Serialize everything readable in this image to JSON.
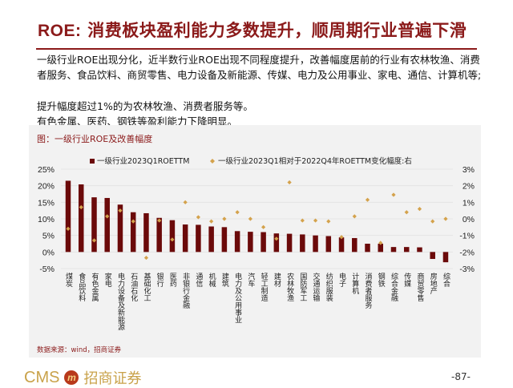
{
  "header": {
    "title_prefix": "ROE:",
    "title_rest": " 消费板块盈利能力多数提升，顺周期行业普遍下滑"
  },
  "body": {
    "para1": "一级行业ROE出现分化，近半数行业ROE出现不同程度提升，改善幅度居前的行业有农林牧渔、消费者服务、食品饮料、商贸零售、电力设备及新能源、传媒、电力及公用事业、家电、通信、计算机等;",
    "para2": "提升幅度超过1%的为农林牧渔、消费者服务等。",
    "para3": "有色金属、医药、钢铁等盈利能力下降明显。"
  },
  "figure": {
    "caption": "图：一级行业ROE及改善幅度",
    "source": "数据来源：wind，招商证券"
  },
  "footer": {
    "logo_text": "CMS",
    "logo_mark": "m",
    "logo_cn": "招商证券",
    "page": "-87-"
  },
  "chart_data": {
    "type": "bar+scatter",
    "categories": [
      "煤炭",
      "食品饮料",
      "有色金属",
      "家电",
      "电力设备及新能源",
      "石油石化",
      "基础化工",
      "银行",
      "医药",
      "非银行金融",
      "通信",
      "机械",
      "建筑",
      "电力及公用事业",
      "汽车",
      "轻工制造",
      "建材",
      "农林牧渔",
      "国防军工",
      "交通运输",
      "纺织服装",
      "电子",
      "计算机",
      "消费者服务",
      "钢铁",
      "综合金融",
      "传媒",
      "商贸零售",
      "房地产",
      "综合"
    ],
    "series": [
      {
        "name": "一级行业2023Q1ROETTM",
        "type": "bar",
        "axis": "left",
        "color": "#6b0a0a",
        "values": [
          21.5,
          20.4,
          16.5,
          16.3,
          14.3,
          12.0,
          11.7,
          10.3,
          9.6,
          8.3,
          8.2,
          7.7,
          7.5,
          6.3,
          6.1,
          6.0,
          5.6,
          5.5,
          5.3,
          5.0,
          4.8,
          4.4,
          4.2,
          2.5,
          2.5,
          1.5,
          1.5,
          1.4,
          -2.1,
          -3.1
        ]
      },
      {
        "name": "一级行业2023Q1相对于2022Q4年ROETTM变化幅度:右",
        "type": "scatter",
        "axis": "right",
        "color": "#d4a24c",
        "values": [
          -0.6,
          0.7,
          -1.3,
          0.15,
          0.5,
          -0.15,
          -2.35,
          -0.1,
          -1.25,
          1.0,
          0.1,
          -0.15,
          0.0,
          0.4,
          0.0,
          -0.5,
          -1.2,
          2.2,
          -0.1,
          -0.1,
          -0.15,
          -1.1,
          0.15,
          1.15,
          -1.45,
          1.45,
          0.4,
          0.6,
          -0.15,
          0.0
        ]
      }
    ],
    "y_left": {
      "min": -5,
      "max": 25,
      "ticks": [
        "25%",
        "20%",
        "15%",
        "10%",
        "5%",
        "0%",
        "-5%"
      ]
    },
    "y_right": {
      "min": -3,
      "max": 3,
      "ticks": [
        "3%",
        "2%",
        "1%",
        "0%",
        "-1%",
        "-2%",
        "-3%"
      ]
    },
    "grid": true,
    "legend": "top"
  }
}
